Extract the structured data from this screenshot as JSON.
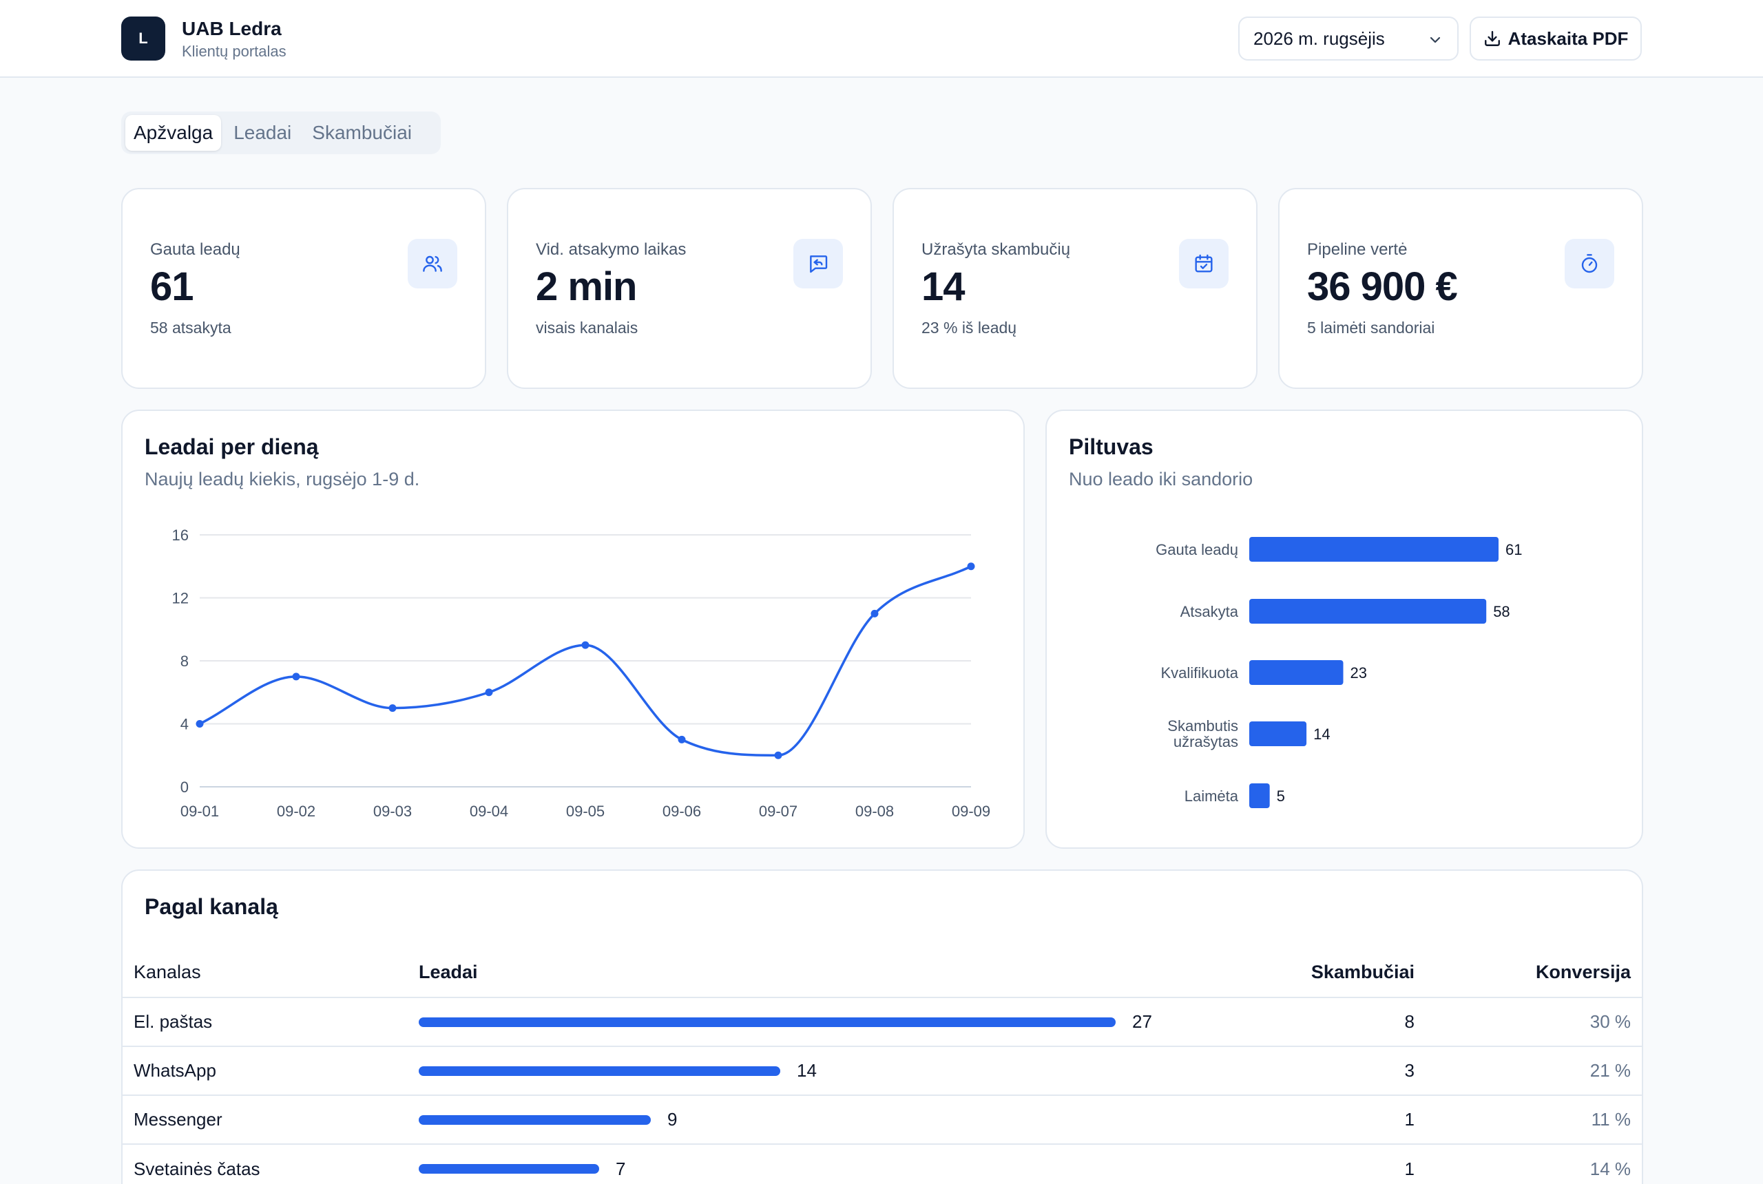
{
  "header": {
    "logo_letter": "L",
    "company": "UAB Ledra",
    "subtitle": "Klientų portalas",
    "period": "2026 m. rugsėjis",
    "pdf_label": "Ataskaita PDF"
  },
  "tabs": [
    {
      "label": "Apžvalga",
      "active": true
    },
    {
      "label": "Leadai",
      "active": false
    },
    {
      "label": "Skambučiai",
      "active": false
    }
  ],
  "kpis": [
    {
      "label": "Gauta leadų",
      "value": "61",
      "sub": "58 atsakyta",
      "icon": "users-icon"
    },
    {
      "label": "Vid. atsakymo laikas",
      "value": "2 min",
      "sub": "visais kanalais",
      "icon": "message-reply-icon"
    },
    {
      "label": "Užrašyta skambučių",
      "value": "14",
      "sub": "23 % iš leadų",
      "icon": "calendar-check-icon"
    },
    {
      "label": "Pipeline vertė",
      "value": "36 900 €",
      "sub": "5 laimėti sandoriai",
      "icon": "stopwatch-icon"
    }
  ],
  "line_card": {
    "title": "Leadai per dieną",
    "subtitle": "Naujų leadų kiekis, rugsėjo 1-9 d."
  },
  "funnel_card": {
    "title": "Piltuvas",
    "subtitle": "Nuo leado iki sandorio"
  },
  "channels": {
    "title": "Pagal kanalą",
    "headers": {
      "channel": "Kanalas",
      "leads": "Leadai",
      "calls": "Skambučiai",
      "conversion": "Konversija"
    },
    "rows": [
      {
        "channel": "El. paštas",
        "leads": 27,
        "calls": "8",
        "conversion": "30 %"
      },
      {
        "channel": "WhatsApp",
        "leads": 14,
        "calls": "3",
        "conversion": "21 %"
      },
      {
        "channel": "Messenger",
        "leads": 9,
        "calls": "1",
        "conversion": "11 %"
      },
      {
        "channel": "Svetainės čatas",
        "leads": 7,
        "calls": "1",
        "conversion": "14 %"
      }
    ]
  },
  "colors": {
    "accent": "#2563eb",
    "navy": "#0f1e36",
    "icon_bg": "#eaf1fd"
  },
  "chart_data": [
    {
      "type": "line",
      "x": [
        "09-01",
        "09-02",
        "09-03",
        "09-04",
        "09-05",
        "09-06",
        "09-07",
        "09-08",
        "09-09"
      ],
      "series": [
        {
          "values": [
            4,
            7,
            5,
            6,
            9,
            3,
            2,
            11,
            14
          ]
        }
      ],
      "yticks": [
        0,
        4,
        8,
        12,
        16
      ],
      "ylim": [
        0,
        16
      ],
      "grid": true
    },
    {
      "type": "bar",
      "orientation": "horizontal",
      "categories": [
        "Gauta leadų",
        "Atsakyta",
        "Kvalifikuota",
        "Skambutis užrašytas",
        "Laimėta"
      ],
      "values": [
        61,
        58,
        23,
        14,
        5
      ]
    }
  ]
}
